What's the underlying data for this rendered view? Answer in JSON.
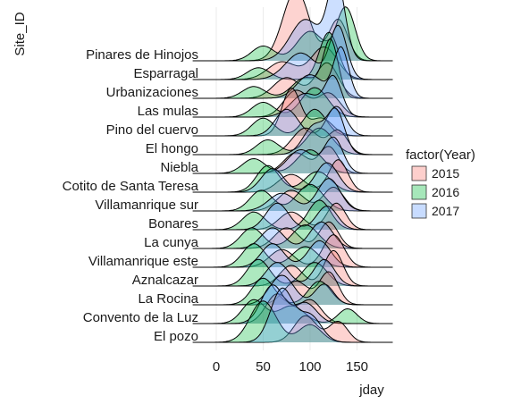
{
  "chart_data": {
    "type": "ridgeline",
    "xlabel": "jday",
    "ylabel": "Site_ID",
    "xlim": [
      -25,
      188
    ],
    "x_ticks": [
      0,
      50,
      100,
      150
    ],
    "grid": "vertical, light gray, no horizontal lines",
    "legend": {
      "title": "factor(Year)",
      "position": "right",
      "entries": [
        {
          "label": "2015",
          "color": "#f8766d"
        },
        {
          "label": "2016",
          "color": "#00ba38"
        },
        {
          "label": "2017",
          "color": "#619cff"
        }
      ]
    },
    "series_colors": {
      "2015": "#f8766d",
      "2016": "#00ba38",
      "2017": "#619cff"
    },
    "sites": [
      {
        "name": "Pinares de Hinojos",
        "peaks": {
          "2015": [
            [
              85,
              14,
              2.4
            ],
            [
              130,
              10,
              1.4
            ]
          ],
          "2016": [
            [
              50,
              12,
              0.5
            ],
            [
              100,
              14,
              1.0
            ],
            [
              138,
              10,
              1.8
            ]
          ],
          "2017": [
            [
              95,
              16,
              1.4
            ],
            [
              128,
              9,
              2.7
            ]
          ]
        }
      },
      {
        "name": "Esparragal",
        "peaks": {
          "2015": [
            [
              70,
              15,
              0.6
            ],
            [
              115,
              14,
              1.1
            ]
          ],
          "2016": [
            [
              45,
              12,
              0.4
            ],
            [
              120,
              10,
              1.6
            ]
          ],
          "2017": [
            [
              90,
              16,
              0.9
            ],
            [
              130,
              9,
              1.8
            ]
          ]
        }
      },
      {
        "name": "Urbanizaciones",
        "peaks": {
          "2015": [
            [
              75,
              14,
              0.7
            ],
            [
              118,
              12,
              1.2
            ]
          ],
          "2016": [
            [
              40,
              12,
              0.4
            ],
            [
              95,
              14,
              0.7
            ],
            [
              122,
              8,
              1.9
            ]
          ],
          "2017": [
            [
              100,
              14,
              0.8
            ],
            [
              133,
              8,
              1.7
            ]
          ]
        }
      },
      {
        "name": "Las mulas",
        "peaks": {
          "2015": [
            [
              85,
              13,
              0.9
            ],
            [
              120,
              12,
              0.8
            ]
          ],
          "2016": [
            [
              50,
              12,
              0.5
            ],
            [
              105,
              14,
              1.0
            ]
          ],
          "2017": [
            [
              95,
              15,
              0.8
            ],
            [
              125,
              9,
              1.3
            ]
          ]
        }
      },
      {
        "name": "Pino del cuervo",
        "peaks": {
          "2015": [
            [
              80,
              10,
              1.6
            ],
            [
              112,
              12,
              0.6
            ]
          ],
          "2016": [
            [
              50,
              12,
              0.6
            ],
            [
              105,
              12,
              0.9
            ]
          ],
          "2017": [
            [
              75,
              12,
              0.9
            ],
            [
              128,
              10,
              1.0
            ]
          ]
        }
      },
      {
        "name": "El hongo",
        "peaks": {
          "2015": [
            [
              95,
              14,
              0.9
            ],
            [
              130,
              10,
              0.8
            ]
          ],
          "2016": [
            [
              55,
              12,
              0.5
            ],
            [
              110,
              14,
              0.9
            ]
          ],
          "2017": [
            [
              105,
              12,
              1.0
            ],
            [
              128,
              9,
              1.4
            ]
          ]
        }
      },
      {
        "name": "Niebla",
        "peaks": {
          "2015": [
            [
              85,
              13,
              0.7
            ],
            [
              120,
              10,
              0.9
            ]
          ],
          "2016": [
            [
              40,
              12,
              0.5
            ],
            [
              100,
              14,
              0.8
            ]
          ],
          "2017": [
            [
              90,
              14,
              0.8
            ],
            [
              125,
              10,
              1.2
            ]
          ]
        }
      },
      {
        "name": "Cotito de Santa Teresa",
        "peaks": {
          "2015": [
            [
              80,
              14,
              0.6
            ],
            [
              130,
              10,
              1.1
            ]
          ],
          "2016": [
            [
              55,
              12,
              0.9
            ],
            [
              108,
              14,
              0.7
            ]
          ],
          "2017": [
            [
              60,
              12,
              0.8
            ],
            [
              118,
              12,
              1.0
            ]
          ]
        }
      },
      {
        "name": "Villamanrique sur",
        "peaks": {
          "2015": [
            [
              80,
              14,
              0.7
            ],
            [
              125,
              11,
              0.8
            ]
          ],
          "2016": [
            [
              48,
              12,
              0.7
            ],
            [
              100,
              14,
              0.9
            ]
          ],
          "2017": [
            [
              70,
              14,
              0.6
            ],
            [
              120,
              12,
              1.1
            ]
          ]
        }
      },
      {
        "name": "Bonares",
        "peaks": {
          "2015": [
            [
              80,
              13,
              0.6
            ],
            [
              128,
              10,
              0.9
            ]
          ],
          "2016": [
            [
              40,
              12,
              0.6
            ],
            [
              110,
              12,
              1.0
            ]
          ],
          "2017": [
            [
              65,
              12,
              0.9
            ],
            [
              118,
              11,
              0.8
            ]
          ]
        }
      },
      {
        "name": "La cunya",
        "peaks": {
          "2015": [
            [
              75,
              13,
              0.7
            ],
            [
              120,
              10,
              0.9
            ]
          ],
          "2016": [
            [
              38,
              12,
              0.7
            ],
            [
              95,
              14,
              0.8
            ]
          ],
          "2017": [
            [
              60,
              12,
              0.7
            ],
            [
              112,
              12,
              0.9
            ]
          ]
        }
      },
      {
        "name": "Villamanrique este",
        "peaks": {
          "2015": [
            [
              70,
              13,
              0.6
            ],
            [
              125,
              11,
              1.1
            ]
          ],
          "2016": [
            [
              40,
              12,
              0.8
            ],
            [
              95,
              14,
              0.7
            ]
          ],
          "2017": [
            [
              60,
              12,
              0.8
            ],
            [
              110,
              12,
              0.9
            ]
          ]
        }
      },
      {
        "name": "Aznalcazar",
        "peaks": {
          "2015": [
            [
              80,
              12,
              0.7
            ],
            [
              125,
              10,
              1.2
            ]
          ],
          "2016": [
            [
              45,
              12,
              0.9
            ],
            [
              105,
              13,
              0.8
            ]
          ],
          "2017": [
            [
              65,
              12,
              0.8
            ],
            [
              115,
              11,
              0.9
            ]
          ]
        }
      },
      {
        "name": "La Rocina",
        "peaks": {
          "2015": [
            [
              85,
              13,
              0.8
            ],
            [
              120,
              10,
              1.1
            ]
          ],
          "2016": [
            [
              50,
              12,
              0.9
            ],
            [
              110,
              12,
              0.8
            ]
          ],
          "2017": [
            [
              70,
              13,
              1.0
            ],
            [
              115,
              10,
              0.7
            ]
          ]
        }
      },
      {
        "name": "Convento de la Luz",
        "peaks": {
          "2015": [
            [
              65,
              12,
              1.0
            ],
            [
              100,
              12,
              0.8
            ]
          ],
          "2016": [
            [
              40,
              12,
              0.8
            ],
            [
              80,
              14,
              0.6
            ],
            [
              140,
              10,
              0.5
            ]
          ],
          "2017": [
            [
              60,
              12,
              1.3
            ],
            [
              95,
              12,
              0.7
            ]
          ]
        }
      },
      {
        "name": "El pozo",
        "peaks": {
          "2015": [
            [
              95,
              12,
              0.9
            ],
            [
              130,
              10,
              0.7
            ]
          ],
          "2016": [
            [
              50,
              14,
              1.4
            ],
            [
              100,
              12,
              0.6
            ]
          ],
          "2017": [
            [
              70,
              12,
              1.8
            ],
            [
              100,
              12,
              0.9
            ]
          ]
        }
      }
    ]
  }
}
